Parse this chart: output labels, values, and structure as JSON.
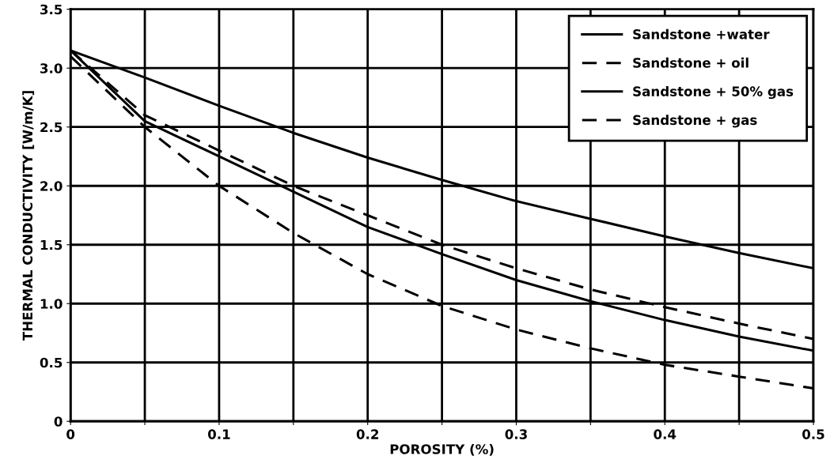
{
  "chart_data": {
    "type": "line",
    "xlabel": "POROSITY (%)",
    "ylabel": "THERMAL CONDUCTIVITY [W/m/K]",
    "x": [
      0,
      0.05,
      0.1,
      0.15,
      0.2,
      0.25,
      0.3,
      0.35,
      0.4,
      0.45,
      0.5
    ],
    "series": [
      {
        "name": "Sandstone +water",
        "color": "#000000",
        "line_style": "solid",
        "values": [
          3.15,
          2.92,
          2.68,
          2.45,
          2.24,
          2.05,
          1.87,
          1.72,
          1.57,
          1.43,
          1.3
        ]
      },
      {
        "name": "Sandstone + oil",
        "color": "#000000",
        "line_style": "dashed",
        "values": [
          3.15,
          2.6,
          2.3,
          2.0,
          1.75,
          1.5,
          1.3,
          1.12,
          0.97,
          0.83,
          0.7
        ]
      },
      {
        "name": "Sandstone + 50% gas",
        "color": "#000000",
        "line_style": "solid",
        "values": [
          3.15,
          2.55,
          2.25,
          1.95,
          1.65,
          1.42,
          1.2,
          1.02,
          0.86,
          0.72,
          0.6
        ]
      },
      {
        "name": "Sandstone + gas",
        "color": "#000000",
        "line_style": "dashed",
        "values": [
          3.1,
          2.5,
          2.0,
          1.6,
          1.25,
          0.98,
          0.78,
          0.62,
          0.48,
          0.38,
          0.28
        ]
      }
    ],
    "xlim": [
      0,
      0.5
    ],
    "xticks": [
      0,
      {
        "value": 0.05,
        "label": null
      },
      0.1,
      {
        "value": 0.15,
        "label": null
      },
      0.2,
      {
        "value": 0.25,
        "label": null
      },
      0.3,
      {
        "value": 0.35,
        "label": null
      },
      0.4,
      {
        "value": 0.45,
        "label": null
      },
      0.5
    ],
    "ylim": [
      0,
      3.5
    ],
    "yticks": [
      0,
      0.5,
      {
        "value": 1,
        "label": "1.0"
      },
      1.5,
      {
        "value": 2,
        "label": "2.0"
      },
      2.5,
      {
        "value": 3,
        "label": "3.0"
      },
      3.5
    ],
    "grid": true,
    "legend": "top right",
    "marker": "none"
  }
}
